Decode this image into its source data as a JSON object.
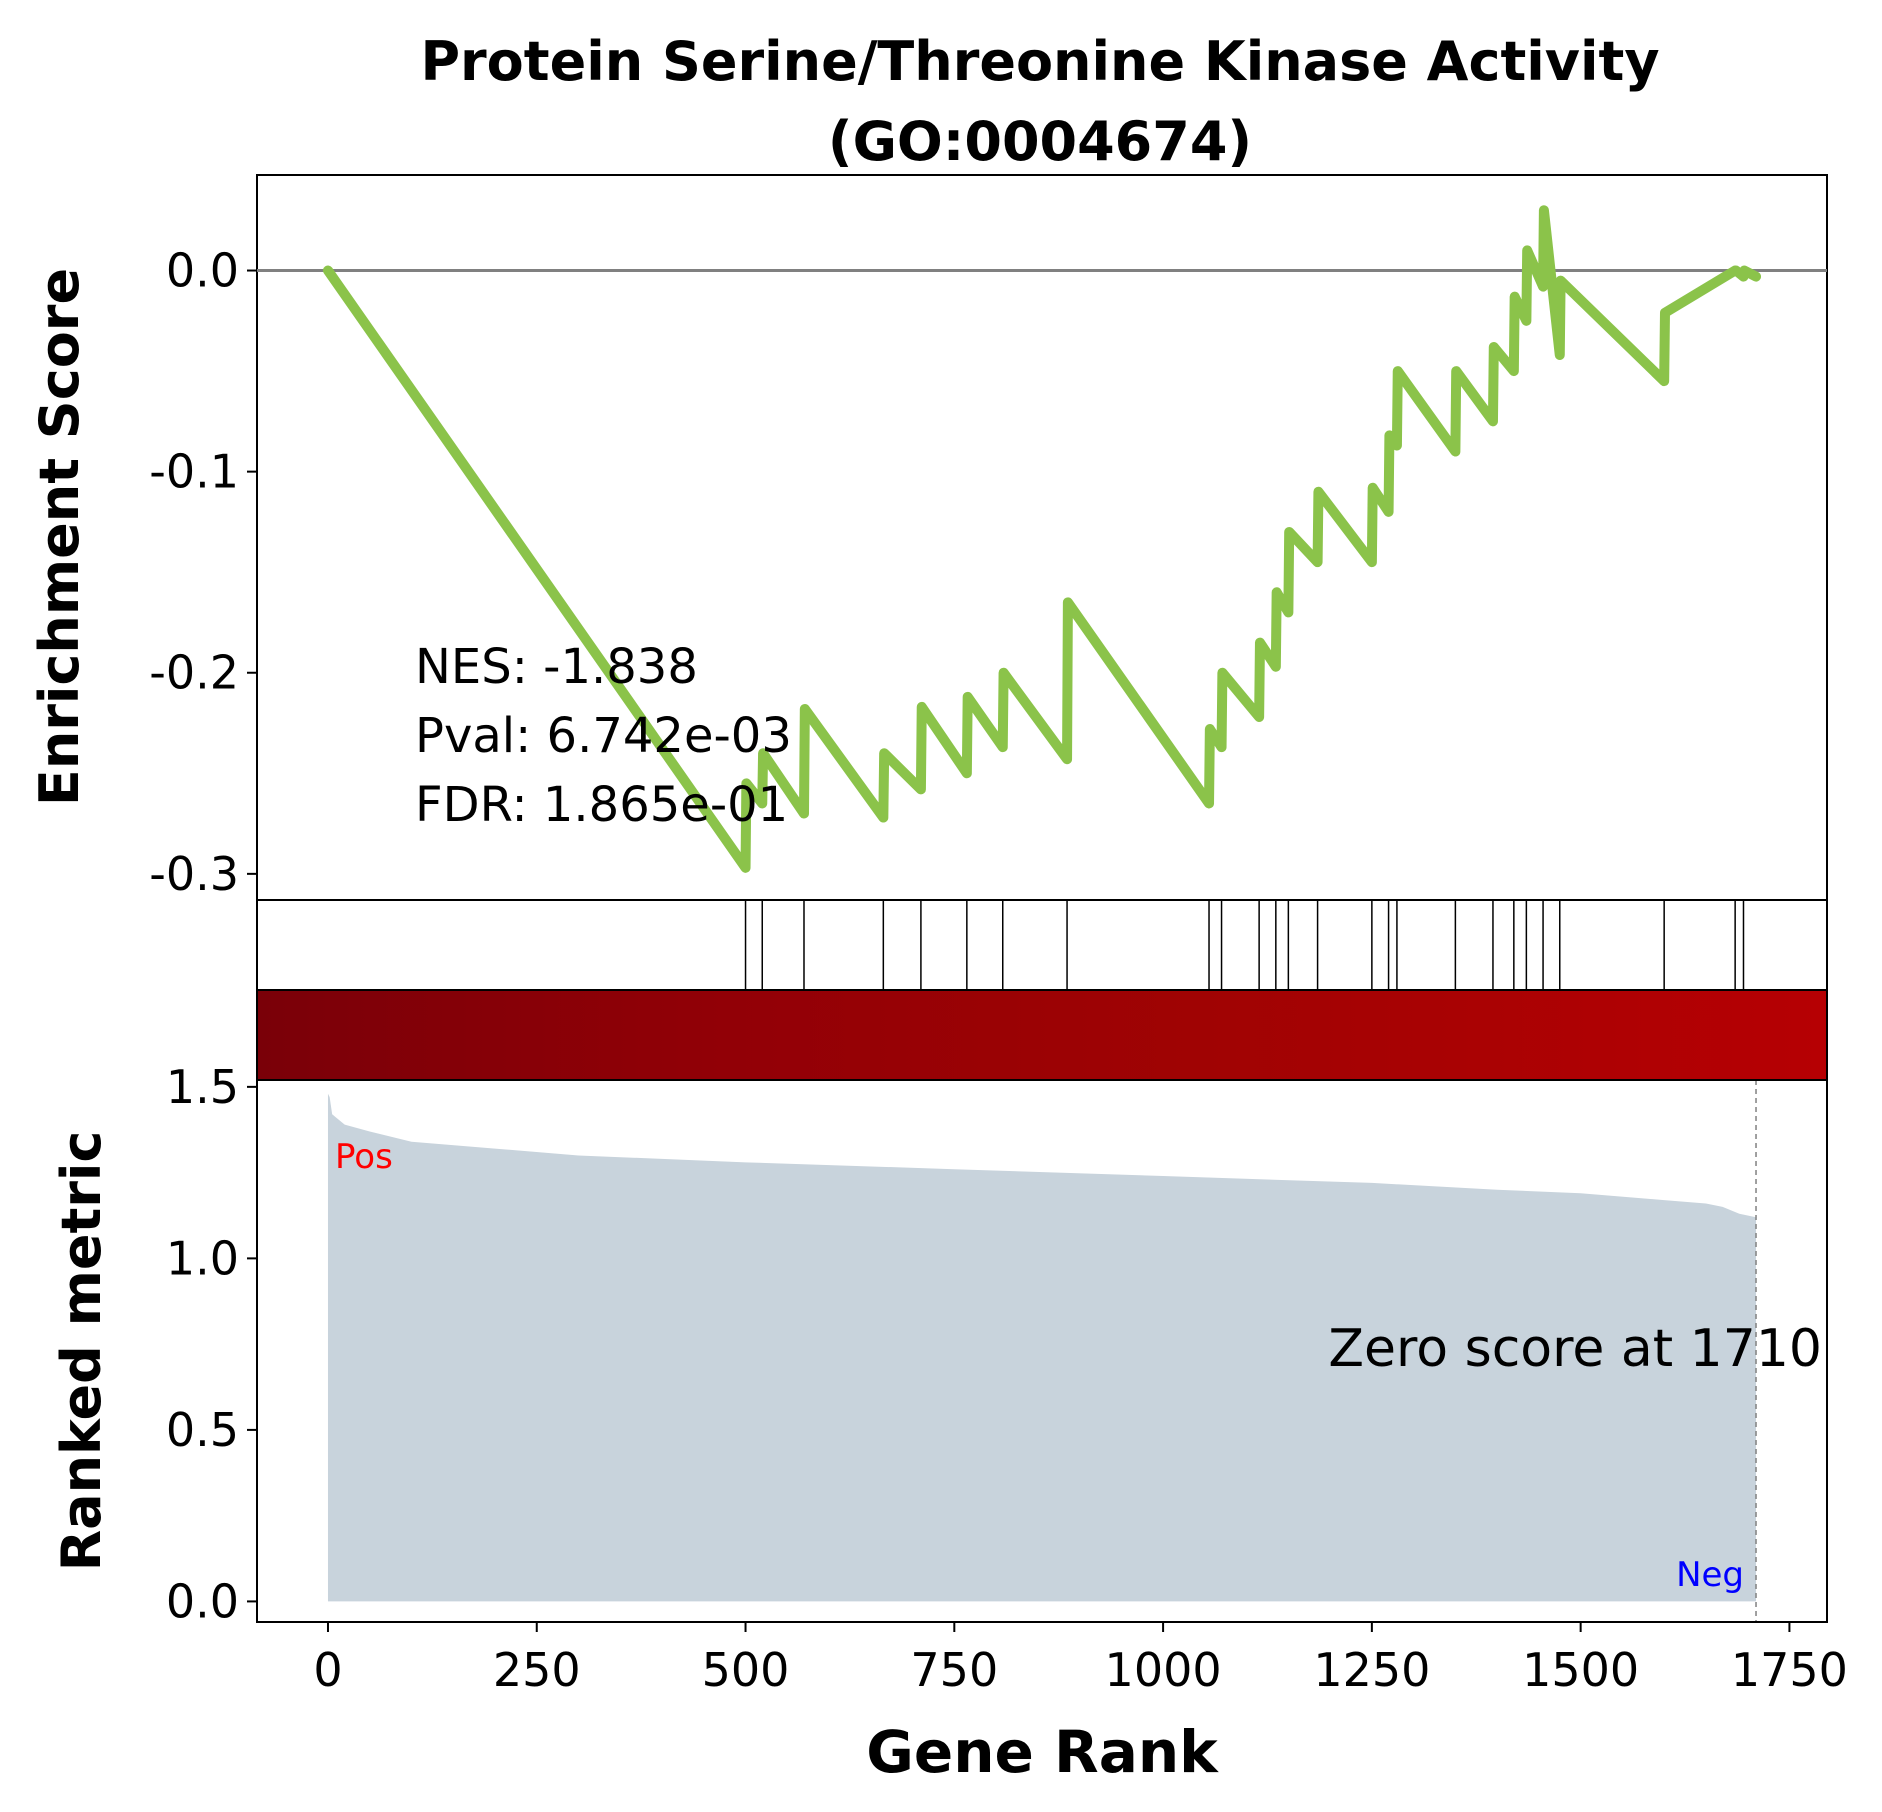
{
  "chart_data": {
    "type": "line",
    "title_line1": "Protein Serine/Threonine Kinase Activity",
    "title_line2": "(GO:0004674)",
    "xlabel": "Gene Rank",
    "xlim": [
      -85,
      1795
    ],
    "xticks": [
      0,
      250,
      500,
      750,
      1000,
      1250,
      1500,
      1750
    ],
    "xtick_labels": [
      "0",
      "250",
      "500",
      "750",
      "1000",
      "1250",
      "1500",
      "1750"
    ],
    "es_panel": {
      "ylabel": "Enrichment Score",
      "ylim": [
        -0.313,
        0.0475
      ],
      "yticks": [
        0.0,
        -0.1,
        -0.2,
        -0.3
      ],
      "ytick_labels": [
        "0.0",
        "-0.1",
        "-0.2",
        "-0.3"
      ],
      "line_color": "#8BC34A",
      "zero_line_color": "#808080",
      "stats": {
        "nes": "NES: -1.838",
        "pval": "Pval: 6.742e-03",
        "fdr": "FDR: 1.865e-01"
      },
      "es_curve": {
        "x": [
          0,
          500,
          501,
          520,
          521,
          570,
          571,
          665,
          666,
          710,
          711,
          765,
          766,
          808,
          809,
          885,
          886,
          1055,
          1056,
          1070,
          1071,
          1115,
          1116,
          1135,
          1136,
          1150,
          1151,
          1185,
          1186,
          1250,
          1251,
          1270,
          1271,
          1280,
          1281,
          1350,
          1351,
          1395,
          1396,
          1420,
          1421,
          1435,
          1436,
          1455,
          1456,
          1475,
          1476,
          1600,
          1601,
          1685,
          1686,
          1695,
          1696,
          1710
        ],
        "y": [
          0.0,
          -0.297,
          -0.255,
          -0.265,
          -0.24,
          -0.27,
          -0.218,
          -0.272,
          -0.24,
          -0.258,
          -0.217,
          -0.25,
          -0.212,
          -0.237,
          -0.2,
          -0.243,
          -0.165,
          -0.265,
          -0.228,
          -0.237,
          -0.2,
          -0.222,
          -0.185,
          -0.197,
          -0.16,
          -0.17,
          -0.13,
          -0.145,
          -0.11,
          -0.145,
          -0.108,
          -0.12,
          -0.082,
          -0.087,
          -0.05,
          -0.09,
          -0.05,
          -0.075,
          -0.038,
          -0.05,
          -0.013,
          -0.025,
          0.01,
          -0.008,
          0.03,
          -0.042,
          -0.005,
          -0.055,
          -0.021,
          0.0,
          0.0,
          -0.003,
          0.0,
          -0.003
        ]
      }
    },
    "hits_panel": {
      "hit_ranks": [
        500,
        520,
        570,
        665,
        710,
        765,
        808,
        885,
        1055,
        1070,
        1115,
        1135,
        1150,
        1185,
        1250,
        1270,
        1280,
        1350,
        1395,
        1420,
        1435,
        1455,
        1475,
        1600,
        1685,
        1695
      ]
    },
    "heat_strip": {
      "colors": [
        "#7a0008",
        "#920006",
        "#a00303",
        "#b60003"
      ]
    },
    "ranked_panel": {
      "ylabel": "Ranked metric",
      "ylim": [
        -0.06,
        1.52
      ],
      "yticks": [
        0.0,
        0.5,
        1.0,
        1.5
      ],
      "ytick_labels": [
        "0.0",
        "0.5",
        "1.0",
        "1.5"
      ],
      "fill_color": "#c8d3dc",
      "curve": {
        "x": [
          0,
          2,
          5,
          10,
          20,
          50,
          100,
          200,
          300,
          500,
          750,
          1000,
          1250,
          1400,
          1500,
          1600,
          1650,
          1670,
          1690,
          1710
        ],
        "y": [
          1.48,
          1.47,
          1.42,
          1.41,
          1.39,
          1.37,
          1.34,
          1.32,
          1.3,
          1.28,
          1.26,
          1.24,
          1.22,
          1.2,
          1.19,
          1.17,
          1.16,
          1.15,
          1.13,
          1.12
        ]
      },
      "zero_score_rank": 1710,
      "zero_score_label": "Zero score at 1710",
      "pos_label": "Pos",
      "neg_label": "Neg",
      "pos_color": "#ff0000",
      "neg_color": "#0000ff"
    }
  }
}
